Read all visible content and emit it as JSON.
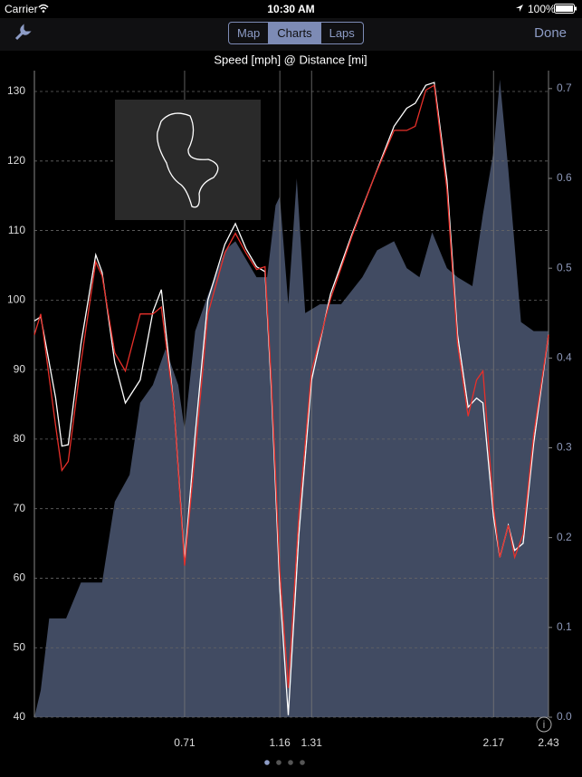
{
  "status_bar": {
    "carrier": "Carrier",
    "time": "10:30 AM",
    "battery": "100%"
  },
  "nav": {
    "tabs": [
      "Map",
      "Charts",
      "Laps"
    ],
    "selected": 1,
    "done": "Done"
  },
  "chart_data": {
    "type": "line",
    "title": "Speed [mph] @ Distance [mi]",
    "x": [
      0,
      0.03,
      0.1,
      0.13,
      0.16,
      0.22,
      0.29,
      0.32,
      0.38,
      0.43,
      0.5,
      0.56,
      0.6,
      0.66,
      0.71,
      0.76,
      0.82,
      0.9,
      0.95,
      1.0,
      1.05,
      1.09,
      1.12,
      1.16,
      1.2,
      1.25,
      1.31,
      1.4,
      1.5,
      1.6,
      1.7,
      1.76,
      1.8,
      1.85,
      1.89,
      1.95,
      2.0,
      2.05,
      2.09,
      2.12,
      2.17,
      2.2,
      2.24,
      2.27,
      2.31,
      2.36,
      2.43
    ],
    "series": [
      {
        "color": "#ffffff",
        "values": [
          97,
          97.6,
          86,
          79,
          79.2,
          93.7,
          106.5,
          104,
          91,
          85.2,
          88.5,
          98.3,
          101.5,
          84.6,
          62.4,
          80.7,
          100,
          108,
          111,
          107.4,
          104.8,
          104.1,
          87.2,
          58.5,
          40.3,
          66.3,
          88.5,
          100.9,
          109.4,
          117.2,
          125,
          127.6,
          128.3,
          130.9,
          131.3,
          117.2,
          95,
          84.6,
          85.9,
          85.2,
          68.9,
          63,
          67.6,
          64,
          65,
          79.4,
          95
        ]
      },
      {
        "color": "#e8302a",
        "values": [
          95,
          98,
          82,
          75.5,
          76.8,
          91,
          105.5,
          103.5,
          92.4,
          89.8,
          98,
          98,
          99,
          84.6,
          61.8,
          78,
          98,
          106.8,
          109.6,
          106.8,
          104.4,
          104.8,
          88.5,
          61,
          44.2,
          69,
          89.8,
          100.2,
          109.1,
          117.2,
          124.4,
          124.4,
          125,
          130.2,
          130.9,
          115.9,
          93.7,
          83.3,
          88.5,
          89.8,
          70.2,
          63,
          67.6,
          63,
          66.3,
          80.7,
          95
        ]
      },
      {
        "color": "#414b62",
        "axis": "y2",
        "area": true,
        "x": [
          0,
          0.03,
          0.07,
          0.15,
          0.22,
          0.32,
          0.38,
          0.45,
          0.5,
          0.56,
          0.62,
          0.68,
          0.71,
          0.76,
          0.82,
          0.9,
          0.95,
          1.0,
          1.05,
          1.1,
          1.14,
          1.16,
          1.2,
          1.24,
          1.28,
          1.35,
          1.45,
          1.55,
          1.62,
          1.7,
          1.76,
          1.82,
          1.88,
          1.95,
          2.0,
          2.07,
          2.12,
          2.17,
          2.2,
          2.24,
          2.3,
          2.36,
          2.43
        ],
        "values": [
          0,
          0.03,
          0.11,
          0.11,
          0.15,
          0.15,
          0.24,
          0.27,
          0.35,
          0.37,
          0.41,
          0.37,
          0.32,
          0.43,
          0.47,
          0.52,
          0.53,
          0.51,
          0.49,
          0.49,
          0.57,
          0.58,
          0.46,
          0.6,
          0.45,
          0.46,
          0.46,
          0.49,
          0.52,
          0.53,
          0.5,
          0.49,
          0.54,
          0.5,
          0.49,
          0.48,
          0.56,
          0.63,
          0.71,
          0.61,
          0.44,
          0.43,
          0.43
        ]
      }
    ],
    "xlim": [
      0,
      2.43
    ],
    "xticks": [
      0.71,
      1.16,
      1.31,
      2.17,
      2.43
    ],
    "ylim": [
      40,
      133
    ],
    "yticks": [
      40,
      50,
      60,
      70,
      80,
      90,
      100,
      110,
      120,
      130
    ],
    "y2lim": [
      0,
      0.72
    ],
    "y2ticks": [
      {
        "value": 0,
        "label": "0.0"
      },
      0.1,
      0.2,
      0.3,
      0.4,
      0.5,
      0.6,
      0.7
    ],
    "grid": true
  }
}
